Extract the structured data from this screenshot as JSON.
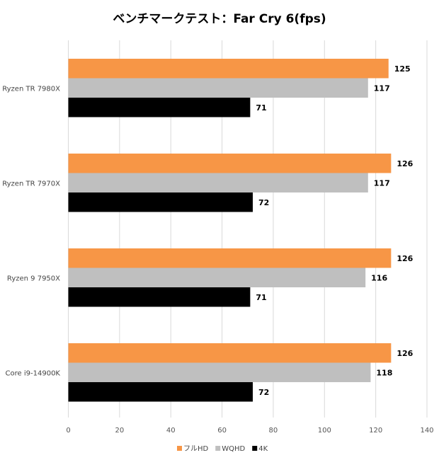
{
  "chart_data": {
    "type": "bar",
    "orientation": "horizontal",
    "title": "ベンチマークテスト：Far Cry 6(fps)",
    "categories": [
      "Ryzen TR 7980X",
      "Ryzen TR 7970X",
      "Ryzen 9 7950X",
      "Core i9-14900K"
    ],
    "series": [
      {
        "name": "フルHD",
        "color": "#F79646",
        "values": [
          125,
          126,
          126,
          126
        ]
      },
      {
        "name": "WQHD",
        "color": "#BFBFBF",
        "values": [
          117,
          117,
          116,
          118
        ]
      },
      {
        "name": "4K",
        "color": "#000000",
        "values": [
          71,
          72,
          71,
          72
        ]
      }
    ],
    "xlim": [
      0,
      140
    ],
    "xticks": [
      0,
      20,
      40,
      60,
      80,
      100,
      120,
      140
    ],
    "grid": true,
    "legend": "bottom",
    "data_labels": true
  }
}
